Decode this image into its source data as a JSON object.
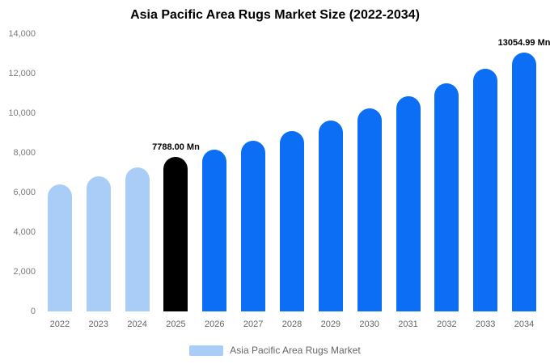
{
  "chart_data": {
    "type": "bar",
    "title": "Asia Pacific Area Rugs Market Size (2022-2034)",
    "categories": [
      "2022",
      "2023",
      "2024",
      "2025",
      "2026",
      "2027",
      "2028",
      "2029",
      "2030",
      "2031",
      "2032",
      "2033",
      "2034"
    ],
    "values": [
      6400,
      6800,
      7250,
      7788,
      8150,
      8600,
      9100,
      9650,
      10250,
      10850,
      11500,
      12250,
      13054.99
    ],
    "unit": "Mn",
    "xlabel": "",
    "ylabel": "",
    "ylim": [
      0,
      14000
    ],
    "y_ticks": [
      "0",
      "2,000",
      "4,000",
      "6,000",
      "8,000",
      "10,000",
      "12,000",
      "14,000"
    ],
    "y_tick_values": [
      0,
      2000,
      4000,
      6000,
      8000,
      10000,
      12000,
      14000
    ],
    "grid": false,
    "legend": "Asia Pacific Area Rugs Market",
    "legend_position": "bottom",
    "bar_colors": [
      "#A9CDF6",
      "#A9CDF6",
      "#A9CDF6",
      "#000000",
      "#0B6EF5",
      "#0B6EF5",
      "#0B6EF5",
      "#0B6EF5",
      "#0B6EF5",
      "#0B6EF5",
      "#0B6EF5",
      "#0B6EF5",
      "#0B6EF5"
    ],
    "annotations": [
      {
        "category": "2025",
        "text": "7788.00 Mn"
      },
      {
        "category": "2034",
        "text": "13054.99 Mn"
      }
    ]
  },
  "colors": {
    "past_bar": "#A9CDF6",
    "current_bar": "#000000",
    "forecast_bar": "#0B6EF5",
    "axis_text": "#7a7a7a",
    "background": "#ffffff"
  }
}
